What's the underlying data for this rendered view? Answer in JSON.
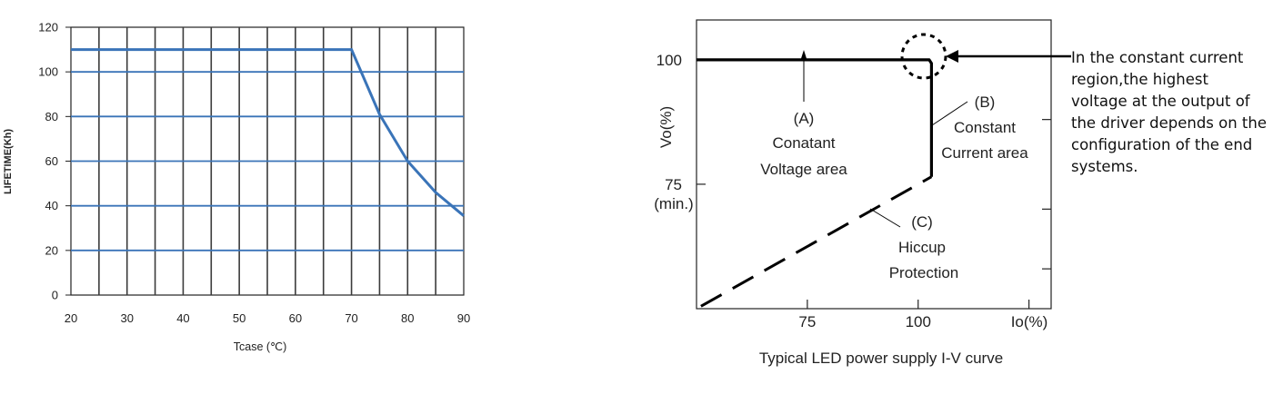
{
  "chart_data": [
    {
      "type": "line",
      "title": "",
      "xlabel": "Tcase (℃)",
      "ylabel": "LIFETIME(Kh)",
      "xlim": [
        20,
        90
      ],
      "ylim": [
        0,
        120
      ],
      "x_ticks": [
        "20",
        "30",
        "40",
        "50",
        "60",
        "70",
        "80",
        "90"
      ],
      "y_ticks": [
        "0",
        "20",
        "40",
        "60",
        "80",
        "100",
        "120"
      ],
      "grid": true,
      "line_color": "#3a74b8",
      "series": [
        {
          "x": [
            20,
            70,
            75,
            80,
            85,
            90
          ],
          "y": [
            110,
            110,
            81,
            60,
            46,
            35.5
          ]
        }
      ]
    },
    {
      "type": "line",
      "title": "Typical LED power supply I-V curve",
      "xlabel": "Io(%)",
      "ylabel": "Vo(%)",
      "x_ticks": [
        "75",
        "100"
      ],
      "y_ticks": [
        "100",
        "75"
      ],
      "y_tick_sub": "(min.)",
      "xlim": [
        50,
        130
      ],
      "ylim": [
        50,
        108
      ],
      "series": [
        {
          "style": "solid",
          "x": [
            50,
            102.5,
            103,
            103,
            103
          ],
          "y": [
            100,
            100,
            99.3,
            97.5,
            76.5
          ]
        },
        {
          "style": "dashed",
          "x": [
            51,
            103
          ],
          "y": [
            50.5,
            76.5
          ]
        }
      ],
      "annotations": [
        {
          "lines": [
            "(A)",
            "Conatant",
            "Voltage area"
          ]
        },
        {
          "lines": [
            "(B)",
            "Constant",
            "Current area"
          ]
        },
        {
          "lines": [
            "(C)",
            "Hiccup",
            "Protection"
          ]
        }
      ],
      "note": "In the constant current region,the highest voltage at the output of the driver depends on the configuration of the end systems."
    }
  ]
}
